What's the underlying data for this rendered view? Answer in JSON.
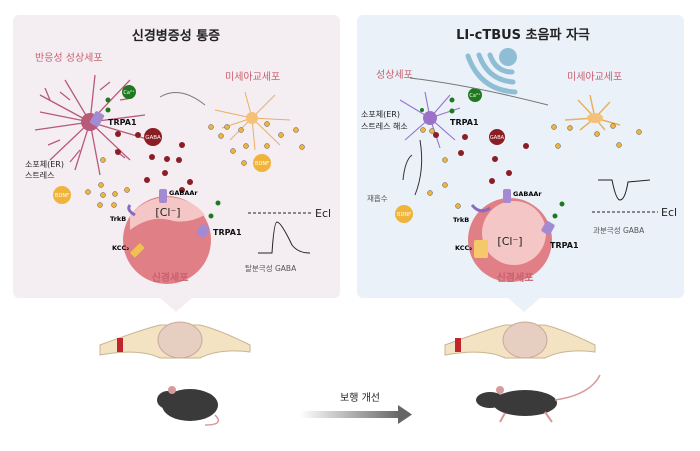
{
  "left_panel": {
    "title": "신경병증성 통증",
    "astrocyte_label": "반응성 성상세포",
    "microglia_label": "미세아교세포",
    "er_label_1": "소포체(ER)",
    "er_label_2": "스트레스",
    "ca_label": "Ca²⁺",
    "trpa1_astro": "TRPA1",
    "gaba_label": "GABA",
    "bdnf_left": "BDNF",
    "bdnf_microglia": "BDNF",
    "gabaar_label": "GABAAr",
    "cl_label": "[Cl⁻]",
    "trkb_label": "TrkB",
    "kcc2_label": "KCC₂",
    "trpa1_neuron": "TRPA1",
    "neuron_label": "신경세포",
    "ecl_label": "Ecl",
    "curve_label": "탈분극성 GABA",
    "background": "#f4eef3"
  },
  "right_panel": {
    "title": "LI-cTBUS 초음파 자극",
    "astrocyte_label": "성상세포",
    "microglia_label": "미세아교세포",
    "er_label_1": "소포체(ER)",
    "er_label_2": "스트레스 해소",
    "ca_label": "Ca²⁺",
    "trpa1_astro": "TRPA1",
    "gaba_label": "GABA",
    "reuptake_label": "재흡수",
    "bdnf_label": "BDNF",
    "gabaar_label": "GABAAr",
    "cl_label": "[Cl⁻]",
    "trkb_label": "TrkB",
    "kcc2_label": "KCC₂",
    "trpa1_neuron": "TRPA1",
    "neuron_label": "신경세포",
    "ecl_label": "Ecl",
    "curve_label": "과분극성 GABA",
    "background": "#eaf1f9"
  },
  "bottom": {
    "arrow_label": "보행 개선"
  },
  "colors": {
    "accent_pink": "#c9606e",
    "gaba": "#8b1e24",
    "calcium": "#1f7a1f",
    "bdnf": "#f0b43c",
    "neuron": "#e07f85",
    "ultrasound": "#8fbdd3"
  }
}
